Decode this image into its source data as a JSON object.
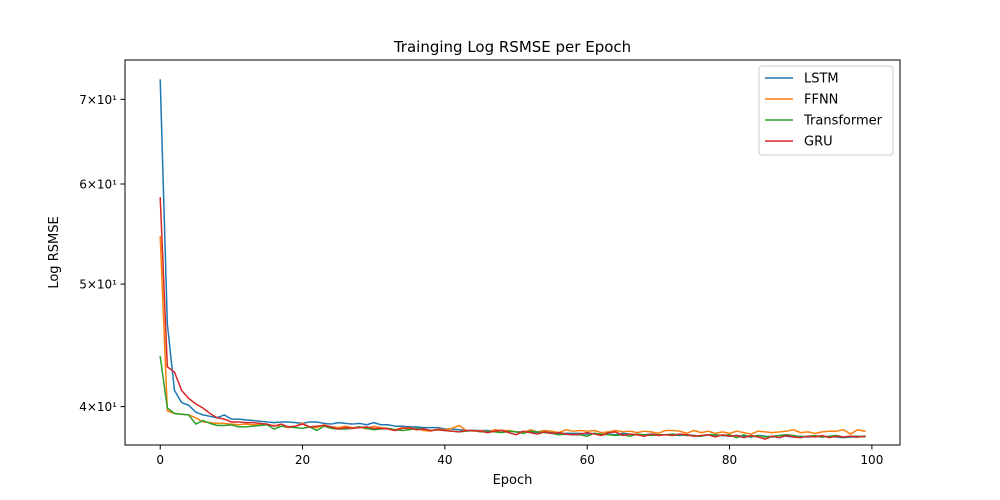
{
  "chart_data": {
    "type": "line",
    "title": "Trainging Log RSMSE per Epoch",
    "xlabel": "Epoch",
    "ylabel": "Log RSMSE",
    "yscale": "log",
    "xlim": [
      -4.95,
      103.95
    ],
    "ylim": [
      37.3,
      75.2
    ],
    "x_ticks": [
      0,
      20,
      40,
      60,
      80,
      100
    ],
    "x_tick_labels": [
      "0",
      "20",
      "40",
      "60",
      "80",
      "100"
    ],
    "y_ticks": [
      40,
      50,
      60,
      70
    ],
    "y_tick_labels": [
      "4×10¹",
      "5×10¹",
      "6×10¹",
      "7×10¹"
    ],
    "grid": false,
    "legend": "top-right",
    "series": [
      {
        "name": "LSTM",
        "color": "#1f77b4",
        "x": [
          0,
          1,
          2,
          3,
          4,
          5,
          6,
          7,
          8,
          9,
          10,
          11,
          12,
          13,
          14,
          15,
          16,
          17,
          18,
          19,
          20,
          21,
          22,
          23,
          24,
          25,
          26,
          27,
          28,
          29,
          30,
          31,
          32,
          33,
          34,
          35,
          36,
          37,
          38,
          39,
          40,
          41,
          42,
          43,
          44,
          45,
          46,
          47,
          48,
          49,
          50,
          51,
          52,
          53,
          54,
          55,
          56,
          57,
          58,
          59,
          60,
          61,
          62,
          63,
          64,
          65,
          66,
          67,
          68,
          69,
          70,
          71,
          72,
          73,
          74,
          75,
          76,
          77,
          78,
          79,
          80,
          81,
          82,
          83,
          84,
          85,
          86,
          87,
          88,
          89,
          90,
          91,
          92,
          93,
          94,
          95,
          96,
          97,
          98,
          99
        ],
        "values": [
          72.5,
          46.5,
          41.2,
          40.3,
          40.1,
          39.6,
          39.4,
          39.3,
          39.2,
          39.4,
          39.1,
          39.1,
          39.05,
          39.0,
          38.95,
          38.9,
          38.85,
          38.9,
          38.9,
          38.85,
          38.8,
          38.9,
          38.9,
          38.8,
          38.75,
          38.85,
          38.8,
          38.75,
          38.8,
          38.7,
          38.85,
          38.7,
          38.7,
          38.6,
          38.6,
          38.55,
          38.55,
          38.5,
          38.5,
          38.5,
          38.4,
          38.4,
          38.35,
          38.3,
          38.3,
          38.3,
          38.3,
          38.25,
          38.3,
          38.25,
          38.2,
          38.2,
          38.2,
          38.15,
          38.2,
          38.15,
          38.1,
          38.1,
          38.1,
          38.1,
          38.05,
          38.1,
          38.05,
          38.05,
          38.0,
          38.1,
          38.05,
          38.0,
          38.0,
          38.05,
          38.0,
          38.0,
          38.0,
          37.95,
          38.0,
          37.95,
          37.9,
          38.0,
          37.95,
          37.95,
          37.9,
          37.95,
          37.9,
          37.85,
          37.95,
          37.9,
          37.85,
          37.95,
          37.9,
          37.85,
          37.9,
          37.85,
          37.9,
          37.85,
          37.9,
          37.85,
          37.8,
          37.85,
          37.85,
          37.9
        ]
      },
      {
        "name": "FFNN",
        "color": "#ff7f0e",
        "x": [
          0,
          1,
          2,
          3,
          4,
          5,
          6,
          7,
          8,
          9,
          10,
          11,
          12,
          13,
          14,
          15,
          16,
          17,
          18,
          19,
          20,
          21,
          22,
          23,
          24,
          25,
          26,
          27,
          28,
          29,
          30,
          31,
          32,
          33,
          34,
          35,
          36,
          37,
          38,
          39,
          40,
          41,
          42,
          43,
          44,
          45,
          46,
          47,
          48,
          49,
          50,
          51,
          52,
          53,
          54,
          55,
          56,
          57,
          58,
          59,
          60,
          61,
          62,
          63,
          64,
          65,
          66,
          67,
          68,
          69,
          70,
          71,
          72,
          73,
          74,
          75,
          76,
          77,
          78,
          79,
          80,
          81,
          82,
          83,
          84,
          85,
          86,
          87,
          88,
          89,
          90,
          91,
          92,
          93,
          94,
          95,
          96,
          97,
          98,
          99
        ],
        "values": [
          54.5,
          39.7,
          39.5,
          39.45,
          39.4,
          39.2,
          38.9,
          38.85,
          38.8,
          38.8,
          38.75,
          38.7,
          38.75,
          38.7,
          38.7,
          38.7,
          38.65,
          38.6,
          38.5,
          38.6,
          38.8,
          38.55,
          38.5,
          38.7,
          38.55,
          38.5,
          38.6,
          38.5,
          38.55,
          38.4,
          38.6,
          38.5,
          38.45,
          38.35,
          38.5,
          38.4,
          38.45,
          38.3,
          38.25,
          38.4,
          38.35,
          38.45,
          38.65,
          38.3,
          38.25,
          38.3,
          38.2,
          38.35,
          38.3,
          38.3,
          38.2,
          38.15,
          38.35,
          38.2,
          38.3,
          38.25,
          38.15,
          38.35,
          38.25,
          38.3,
          38.25,
          38.3,
          38.15,
          38.2,
          38.3,
          38.2,
          38.25,
          38.15,
          38.25,
          38.2,
          38.1,
          38.3,
          38.3,
          38.25,
          38.1,
          38.3,
          38.15,
          38.25,
          38.1,
          38.2,
          38.1,
          38.25,
          38.15,
          38.05,
          38.25,
          38.2,
          38.15,
          38.2,
          38.25,
          38.35,
          38.15,
          38.2,
          38.1,
          38.2,
          38.25,
          38.25,
          38.35,
          38.05,
          38.35,
          38.25
        ]
      },
      {
        "name": "Transformer",
        "color": "#2ca02c",
        "x": [
          0,
          1,
          2,
          3,
          4,
          5,
          6,
          7,
          8,
          9,
          10,
          11,
          12,
          13,
          14,
          15,
          16,
          17,
          18,
          19,
          20,
          21,
          22,
          23,
          24,
          25,
          26,
          27,
          28,
          29,
          30,
          31,
          32,
          33,
          34,
          35,
          36,
          37,
          38,
          39,
          40,
          41,
          42,
          43,
          44,
          45,
          46,
          47,
          48,
          49,
          50,
          51,
          52,
          53,
          54,
          55,
          56,
          57,
          58,
          59,
          60,
          61,
          62,
          63,
          64,
          65,
          66,
          67,
          68,
          69,
          70,
          71,
          72,
          73,
          74,
          75,
          76,
          77,
          78,
          79,
          80,
          81,
          82,
          83,
          84,
          85,
          86,
          87,
          88,
          89,
          90,
          91,
          92,
          93,
          94,
          95,
          96,
          97,
          98,
          99
        ],
        "values": [
          43.8,
          39.9,
          39.5,
          39.45,
          39.4,
          38.75,
          39.0,
          38.8,
          38.65,
          38.65,
          38.7,
          38.55,
          38.55,
          38.6,
          38.65,
          38.7,
          38.4,
          38.6,
          38.55,
          38.5,
          38.45,
          38.55,
          38.3,
          38.6,
          38.45,
          38.4,
          38.4,
          38.45,
          38.55,
          38.45,
          38.35,
          38.4,
          38.45,
          38.35,
          38.3,
          38.35,
          38.45,
          38.4,
          38.3,
          38.35,
          38.3,
          38.25,
          38.2,
          38.25,
          38.3,
          38.2,
          38.25,
          38.2,
          38.15,
          38.25,
          38.2,
          38.1,
          38.25,
          38.2,
          38.15,
          38.1,
          38.0,
          38.05,
          38.0,
          38.0,
          37.9,
          38.1,
          38.05,
          38.0,
          37.95,
          38.0,
          37.9,
          38.05,
          38.0,
          37.95,
          38.0,
          38.0,
          38.05,
          38.0,
          37.95,
          37.95,
          37.9,
          38.0,
          38.0,
          37.95,
          38.0,
          37.8,
          38.0,
          37.85,
          37.95,
          37.85,
          37.9,
          37.95,
          38.0,
          37.95,
          37.85,
          37.9,
          37.95,
          37.85,
          37.9,
          37.95,
          37.85,
          37.9,
          37.9,
          37.85
        ]
      },
      {
        "name": "GRU",
        "color": "#d62728",
        "x": [
          0,
          1,
          2,
          3,
          4,
          5,
          6,
          7,
          8,
          9,
          10,
          11,
          12,
          13,
          14,
          15,
          16,
          17,
          18,
          19,
          20,
          21,
          22,
          23,
          24,
          25,
          26,
          27,
          28,
          29,
          30,
          31,
          32,
          33,
          34,
          35,
          36,
          37,
          38,
          39,
          40,
          41,
          42,
          43,
          44,
          45,
          46,
          47,
          48,
          49,
          50,
          51,
          52,
          53,
          54,
          55,
          56,
          57,
          58,
          59,
          60,
          61,
          62,
          63,
          64,
          65,
          66,
          67,
          68,
          69,
          70,
          71,
          72,
          73,
          74,
          75,
          76,
          77,
          78,
          79,
          80,
          81,
          82,
          83,
          84,
          85,
          86,
          87,
          88,
          89,
          90,
          91,
          92,
          93,
          94,
          95,
          96,
          97,
          98,
          99
        ],
        "values": [
          58.5,
          43.0,
          42.6,
          41.2,
          40.6,
          40.2,
          39.9,
          39.5,
          39.2,
          39.1,
          38.9,
          38.9,
          38.85,
          38.85,
          38.8,
          38.75,
          38.6,
          38.75,
          38.55,
          38.6,
          38.75,
          38.55,
          38.6,
          38.65,
          38.55,
          38.4,
          38.5,
          38.45,
          38.5,
          38.55,
          38.45,
          38.45,
          38.4,
          38.3,
          38.45,
          38.5,
          38.35,
          38.4,
          38.3,
          38.35,
          38.3,
          38.25,
          38.2,
          38.3,
          38.3,
          38.25,
          38.15,
          38.25,
          38.3,
          38.15,
          38.0,
          38.25,
          38.15,
          38.05,
          38.2,
          38.1,
          38.15,
          38.05,
          38.0,
          38.05,
          38.15,
          38.05,
          37.95,
          38.15,
          38.2,
          37.95,
          38.05,
          38.0,
          37.9,
          38.05,
          37.95,
          38.0,
          37.95,
          38.05,
          38.0,
          37.9,
          37.95,
          38.0,
          37.85,
          38.0,
          37.9,
          37.95,
          37.8,
          37.95,
          37.85,
          37.7,
          37.9,
          37.8,
          37.95,
          37.85,
          37.8,
          37.9,
          37.85,
          37.95,
          37.8,
          37.9,
          37.85,
          37.9,
          37.85,
          37.9
        ]
      }
    ]
  }
}
